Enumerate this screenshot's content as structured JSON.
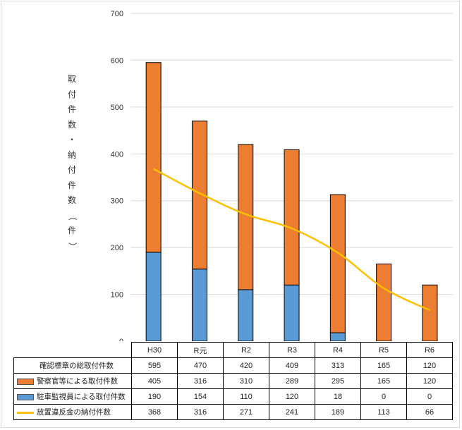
{
  "colors": {
    "orange": "#ED7D31",
    "blue": "#5B9BD5",
    "line": "#FFC000"
  },
  "y_axis_label": [
    "取",
    "付",
    "件",
    "数",
    "・",
    "納",
    "付",
    "件",
    "数",
    "（",
    "件",
    "）"
  ],
  "chart_data": {
    "type": "bar",
    "stacked": true,
    "categories": [
      "H30",
      "R元",
      "R2",
      "R3",
      "R4",
      "R5",
      "R6"
    ],
    "ylim": [
      0,
      700
    ],
    "yticks": [
      0,
      100,
      200,
      300,
      400,
      500,
      600,
      700
    ],
    "ylabel": "取付件数・納付件数（件）",
    "grid": true,
    "legend": "data-table",
    "series": [
      {
        "name": "駐車監視員による取付件数",
        "kind": "bar",
        "color_key": "blue",
        "values": [
          190,
          154,
          110,
          120,
          18,
          0,
          0
        ]
      },
      {
        "name": "警察官等による取付件数",
        "kind": "bar",
        "color_key": "orange",
        "values": [
          405,
          316,
          310,
          289,
          295,
          165,
          120
        ]
      },
      {
        "name": "放置違反金の納付件数",
        "kind": "line",
        "color_key": "line",
        "values": [
          368,
          316,
          271,
          241,
          189,
          113,
          66
        ]
      }
    ],
    "table": {
      "rows": [
        {
          "label": "確認標章の総取付件数",
          "key": "none",
          "values": [
            595,
            470,
            420,
            409,
            313,
            165,
            120
          ]
        },
        {
          "label": "警察官等による取付件数",
          "key": "orange",
          "values": [
            405,
            316,
            310,
            289,
            295,
            165,
            120
          ]
        },
        {
          "label": "駐車監視員による取付件数",
          "key": "blue",
          "values": [
            190,
            154,
            110,
            120,
            18,
            0,
            0
          ]
        },
        {
          "label": "放置違反金の納付件数",
          "key": "line",
          "values": [
            368,
            316,
            271,
            241,
            189,
            113,
            66
          ]
        }
      ]
    }
  }
}
